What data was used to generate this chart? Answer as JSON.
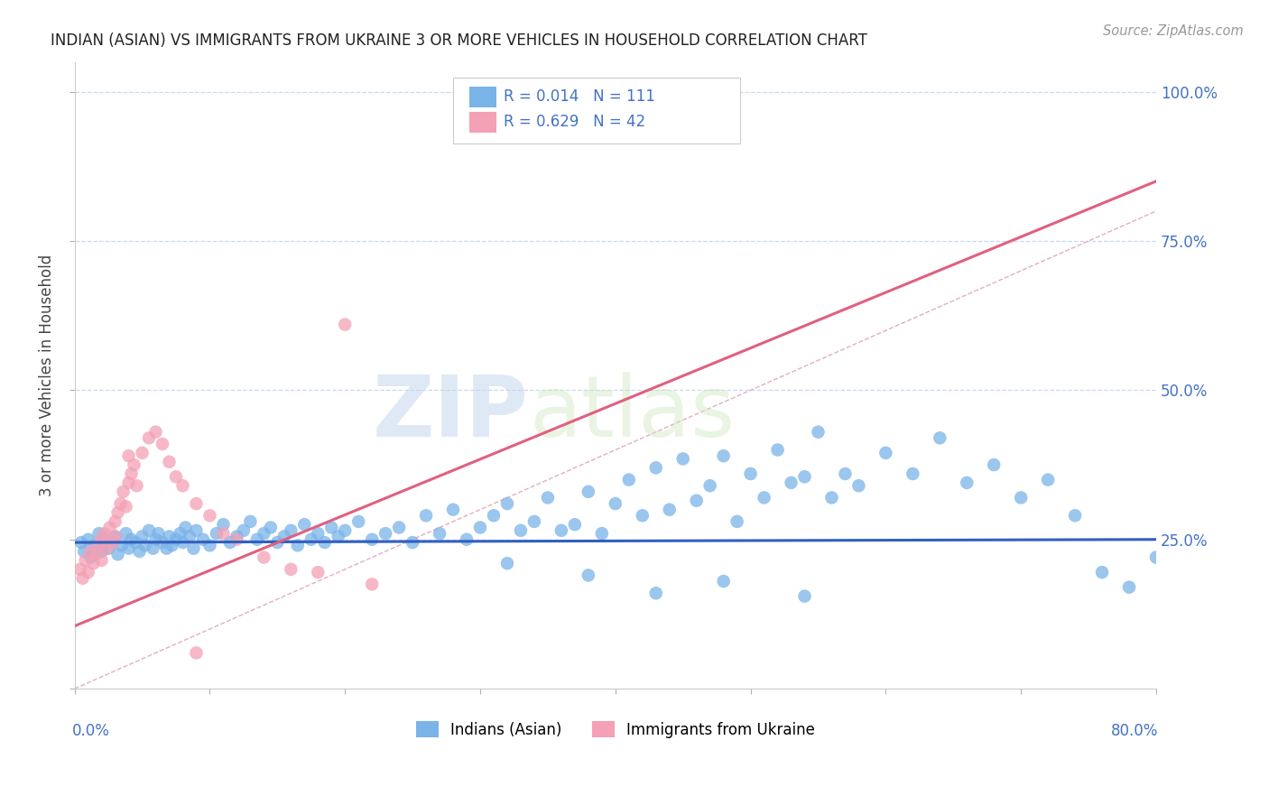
{
  "title": "INDIAN (ASIAN) VS IMMIGRANTS FROM UKRAINE 3 OR MORE VEHICLES IN HOUSEHOLD CORRELATION CHART",
  "source": "Source: ZipAtlas.com",
  "ylabel": "3 or more Vehicles in Household",
  "xlim": [
    0.0,
    0.8
  ],
  "ylim": [
    0.0,
    1.05
  ],
  "legend_r1": "R = 0.014",
  "legend_n1": "N = 111",
  "legend_r2": "R = 0.629",
  "legend_n2": "N = 42",
  "legend_label1": "Indians (Asian)",
  "legend_label2": "Immigrants from Ukraine",
  "color_blue": "#7ab3e8",
  "color_pink": "#f4a0b5",
  "color_blue_dark": "#3060c0",
  "color_pink_dark": "#e06080",
  "color_axis": "#4472c4",
  "color_grid": "#c8d8f0",
  "watermark_zip": "ZIP",
  "watermark_atlas": "atlas",
  "blue_dots_x": [
    0.005,
    0.007,
    0.01,
    0.012,
    0.015,
    0.018,
    0.02,
    0.022,
    0.025,
    0.028,
    0.03,
    0.032,
    0.035,
    0.038,
    0.04,
    0.042,
    0.045,
    0.048,
    0.05,
    0.052,
    0.055,
    0.058,
    0.06,
    0.062,
    0.065,
    0.068,
    0.07,
    0.072,
    0.075,
    0.078,
    0.08,
    0.082,
    0.085,
    0.088,
    0.09,
    0.095,
    0.1,
    0.105,
    0.11,
    0.115,
    0.12,
    0.125,
    0.13,
    0.135,
    0.14,
    0.145,
    0.15,
    0.155,
    0.16,
    0.165,
    0.17,
    0.175,
    0.18,
    0.185,
    0.19,
    0.195,
    0.2,
    0.21,
    0.22,
    0.23,
    0.24,
    0.25,
    0.26,
    0.27,
    0.28,
    0.29,
    0.3,
    0.31,
    0.32,
    0.33,
    0.34,
    0.35,
    0.36,
    0.37,
    0.38,
    0.39,
    0.4,
    0.41,
    0.42,
    0.43,
    0.44,
    0.45,
    0.46,
    0.47,
    0.48,
    0.49,
    0.5,
    0.51,
    0.52,
    0.53,
    0.54,
    0.55,
    0.56,
    0.57,
    0.58,
    0.6,
    0.62,
    0.64,
    0.66,
    0.68,
    0.7,
    0.72,
    0.74,
    0.76,
    0.78,
    0.8,
    0.54,
    0.48,
    0.43,
    0.38,
    0.32
  ],
  "blue_dots_y": [
    0.245,
    0.23,
    0.25,
    0.22,
    0.24,
    0.26,
    0.23,
    0.25,
    0.235,
    0.245,
    0.255,
    0.225,
    0.24,
    0.26,
    0.235,
    0.25,
    0.245,
    0.23,
    0.255,
    0.24,
    0.265,
    0.235,
    0.25,
    0.26,
    0.245,
    0.235,
    0.255,
    0.24,
    0.25,
    0.26,
    0.245,
    0.27,
    0.255,
    0.235,
    0.265,
    0.25,
    0.24,
    0.26,
    0.275,
    0.245,
    0.255,
    0.265,
    0.28,
    0.25,
    0.26,
    0.27,
    0.245,
    0.255,
    0.265,
    0.24,
    0.275,
    0.25,
    0.26,
    0.245,
    0.27,
    0.255,
    0.265,
    0.28,
    0.25,
    0.26,
    0.27,
    0.245,
    0.29,
    0.26,
    0.3,
    0.25,
    0.27,
    0.29,
    0.31,
    0.265,
    0.28,
    0.32,
    0.265,
    0.275,
    0.33,
    0.26,
    0.31,
    0.35,
    0.29,
    0.37,
    0.3,
    0.385,
    0.315,
    0.34,
    0.39,
    0.28,
    0.36,
    0.32,
    0.4,
    0.345,
    0.355,
    0.43,
    0.32,
    0.36,
    0.34,
    0.395,
    0.36,
    0.42,
    0.345,
    0.375,
    0.32,
    0.35,
    0.29,
    0.195,
    0.17,
    0.22,
    0.155,
    0.18,
    0.16,
    0.19,
    0.21
  ],
  "pink_dots_x": [
    0.004,
    0.006,
    0.008,
    0.01,
    0.012,
    0.014,
    0.016,
    0.018,
    0.02,
    0.02,
    0.022,
    0.024,
    0.026,
    0.028,
    0.03,
    0.03,
    0.032,
    0.034,
    0.036,
    0.038,
    0.04,
    0.04,
    0.042,
    0.044,
    0.046,
    0.05,
    0.055,
    0.06,
    0.065,
    0.07,
    0.075,
    0.08,
    0.09,
    0.1,
    0.11,
    0.12,
    0.14,
    0.16,
    0.18,
    0.2,
    0.22,
    0.09
  ],
  "pink_dots_y": [
    0.2,
    0.185,
    0.215,
    0.195,
    0.23,
    0.21,
    0.225,
    0.24,
    0.25,
    0.215,
    0.26,
    0.235,
    0.27,
    0.245,
    0.28,
    0.255,
    0.295,
    0.31,
    0.33,
    0.305,
    0.345,
    0.39,
    0.36,
    0.375,
    0.34,
    0.395,
    0.42,
    0.43,
    0.41,
    0.38,
    0.355,
    0.34,
    0.31,
    0.29,
    0.26,
    0.25,
    0.22,
    0.2,
    0.195,
    0.61,
    0.175,
    0.06
  ],
  "blue_trend_x": [
    0.0,
    0.8
  ],
  "blue_trend_y": [
    0.245,
    0.25
  ],
  "pink_trend_x": [
    0.0,
    0.8
  ],
  "pink_trend_y": [
    0.105,
    0.85
  ],
  "ref_line_x": [
    0.0,
    1.0
  ],
  "ref_line_y": [
    0.0,
    1.0
  ]
}
